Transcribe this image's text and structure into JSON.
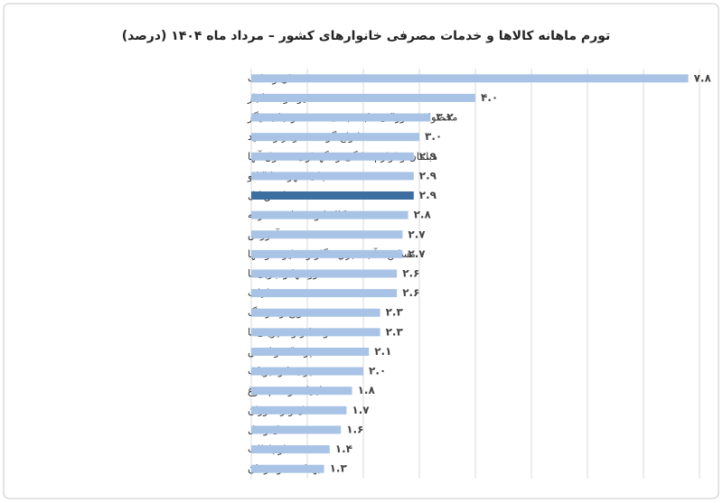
{
  "chart_data": {
    "type": "hbar",
    "title": "تورم ماهانه کالاها و خدمات مصرفی خانوارهای کشور – مرداد ماه ۱۴۰۴ (درصد)",
    "categories": [
      "نان و غلات",
      "میوه و خشکبار",
      "محصولات خوراکی طبقه بندی نشده در جای دیگر",
      "انواع گوشت قرمز و سفید",
      "مبلمان و لوازم خانگی و نگهداری معمول آنها",
      "چای، قهوه ، کاکائو",
      "شاخص کل",
      "کالاها و خدمات متفرقه",
      "آموزش",
      "مسکن ، آب ، برق ، گاز و سایر سوختها",
      "روغنها و چربی‌ها",
      "دخانیات",
      "تفریح و فرهنگ",
      "قند و شکر و شیرینی‌ها",
      "پوشاک و کفش",
      "سبزی‌ها وحبوبات",
      "لبنیات و تخم مرغ",
      "هتل و رستوران",
      "حمل ونقل",
      "ارتباطات",
      "بهداشت و درمان"
    ],
    "values": [
      7.8,
      4.0,
      3.2,
      3.0,
      2.9,
      2.9,
      2.9,
      2.8,
      2.7,
      2.7,
      2.6,
      2.6,
      2.3,
      2.3,
      2.1,
      2.0,
      1.8,
      1.7,
      1.6,
      1.4,
      1.3
    ],
    "value_labels": [
      "۷.۸",
      "۴.۰",
      "۳.۲",
      "۳.۰",
      "۲.۹",
      "۲.۹",
      "۲.۹",
      "۲.۸",
      "۲.۷",
      "۲.۷",
      "۲.۶",
      "۲.۶",
      "۲.۳",
      "۲.۳",
      "۲.۱",
      "۲.۰",
      "۱.۸",
      "۱.۷",
      "۱.۶",
      "۱.۴",
      "۱.۳"
    ],
    "colors": [
      "#a8c3e6",
      "#a8c3e6",
      "#a8c3e6",
      "#a8c3e6",
      "#a8c3e6",
      "#a8c3e6",
      "#3c6e9f",
      "#a8c3e6",
      "#a8c3e6",
      "#a8c3e6",
      "#a8c3e6",
      "#a8c3e6",
      "#a8c3e6",
      "#a8c3e6",
      "#a8c3e6",
      "#a8c3e6",
      "#a8c3e6",
      "#a8c3e6",
      "#a8c3e6",
      "#a8c3e6",
      "#a8c3e6"
    ],
    "xlim": [
      0,
      8
    ],
    "xticks": [
      0,
      1,
      2,
      3,
      4,
      5,
      6,
      7,
      8
    ],
    "grid": true
  }
}
